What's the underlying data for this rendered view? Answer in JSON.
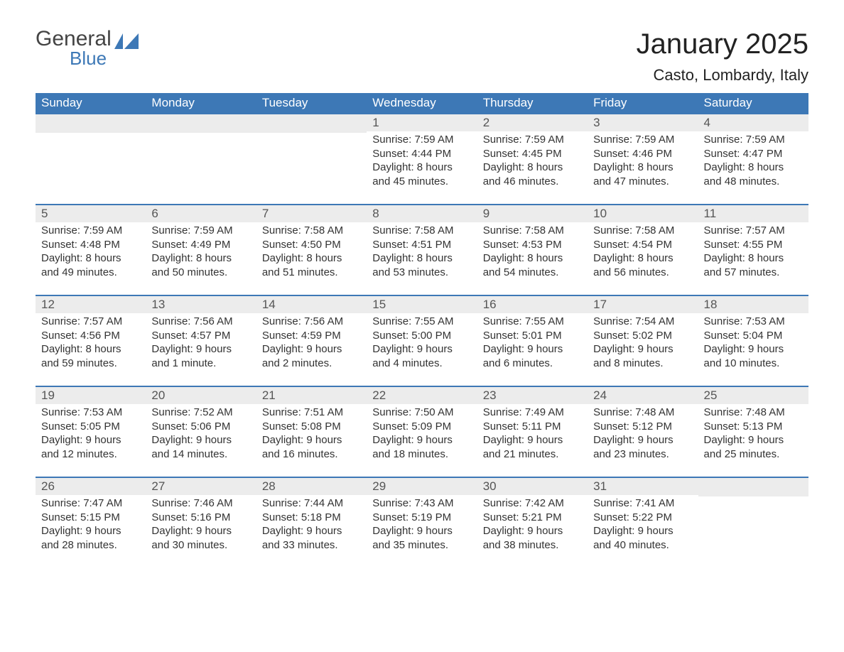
{
  "brand": {
    "word1": "General",
    "word2": "Blue"
  },
  "title": "January 2025",
  "location": "Casto, Lombardy, Italy",
  "colors": {
    "header_bg": "#3d78b6",
    "header_text": "#ffffff",
    "daynum_bg": "#ececec",
    "border": "#3d78b6",
    "body_text": "#333333",
    "logo_gray": "#444444",
    "logo_blue": "#3d78b6"
  },
  "day_headers": [
    "Sunday",
    "Monday",
    "Tuesday",
    "Wednesday",
    "Thursday",
    "Friday",
    "Saturday"
  ],
  "weeks": [
    [
      {
        "n": "",
        "sr": "",
        "ss": "",
        "dl1": "",
        "dl2": ""
      },
      {
        "n": "",
        "sr": "",
        "ss": "",
        "dl1": "",
        "dl2": ""
      },
      {
        "n": "",
        "sr": "",
        "ss": "",
        "dl1": "",
        "dl2": ""
      },
      {
        "n": "1",
        "sr": "Sunrise: 7:59 AM",
        "ss": "Sunset: 4:44 PM",
        "dl1": "Daylight: 8 hours",
        "dl2": "and 45 minutes."
      },
      {
        "n": "2",
        "sr": "Sunrise: 7:59 AM",
        "ss": "Sunset: 4:45 PM",
        "dl1": "Daylight: 8 hours",
        "dl2": "and 46 minutes."
      },
      {
        "n": "3",
        "sr": "Sunrise: 7:59 AM",
        "ss": "Sunset: 4:46 PM",
        "dl1": "Daylight: 8 hours",
        "dl2": "and 47 minutes."
      },
      {
        "n": "4",
        "sr": "Sunrise: 7:59 AM",
        "ss": "Sunset: 4:47 PM",
        "dl1": "Daylight: 8 hours",
        "dl2": "and 48 minutes."
      }
    ],
    [
      {
        "n": "5",
        "sr": "Sunrise: 7:59 AM",
        "ss": "Sunset: 4:48 PM",
        "dl1": "Daylight: 8 hours",
        "dl2": "and 49 minutes."
      },
      {
        "n": "6",
        "sr": "Sunrise: 7:59 AM",
        "ss": "Sunset: 4:49 PM",
        "dl1": "Daylight: 8 hours",
        "dl2": "and 50 minutes."
      },
      {
        "n": "7",
        "sr": "Sunrise: 7:58 AM",
        "ss": "Sunset: 4:50 PM",
        "dl1": "Daylight: 8 hours",
        "dl2": "and 51 minutes."
      },
      {
        "n": "8",
        "sr": "Sunrise: 7:58 AM",
        "ss": "Sunset: 4:51 PM",
        "dl1": "Daylight: 8 hours",
        "dl2": "and 53 minutes."
      },
      {
        "n": "9",
        "sr": "Sunrise: 7:58 AM",
        "ss": "Sunset: 4:53 PM",
        "dl1": "Daylight: 8 hours",
        "dl2": "and 54 minutes."
      },
      {
        "n": "10",
        "sr": "Sunrise: 7:58 AM",
        "ss": "Sunset: 4:54 PM",
        "dl1": "Daylight: 8 hours",
        "dl2": "and 56 minutes."
      },
      {
        "n": "11",
        "sr": "Sunrise: 7:57 AM",
        "ss": "Sunset: 4:55 PM",
        "dl1": "Daylight: 8 hours",
        "dl2": "and 57 minutes."
      }
    ],
    [
      {
        "n": "12",
        "sr": "Sunrise: 7:57 AM",
        "ss": "Sunset: 4:56 PM",
        "dl1": "Daylight: 8 hours",
        "dl2": "and 59 minutes."
      },
      {
        "n": "13",
        "sr": "Sunrise: 7:56 AM",
        "ss": "Sunset: 4:57 PM",
        "dl1": "Daylight: 9 hours",
        "dl2": "and 1 minute."
      },
      {
        "n": "14",
        "sr": "Sunrise: 7:56 AM",
        "ss": "Sunset: 4:59 PM",
        "dl1": "Daylight: 9 hours",
        "dl2": "and 2 minutes."
      },
      {
        "n": "15",
        "sr": "Sunrise: 7:55 AM",
        "ss": "Sunset: 5:00 PM",
        "dl1": "Daylight: 9 hours",
        "dl2": "and 4 minutes."
      },
      {
        "n": "16",
        "sr": "Sunrise: 7:55 AM",
        "ss": "Sunset: 5:01 PM",
        "dl1": "Daylight: 9 hours",
        "dl2": "and 6 minutes."
      },
      {
        "n": "17",
        "sr": "Sunrise: 7:54 AM",
        "ss": "Sunset: 5:02 PM",
        "dl1": "Daylight: 9 hours",
        "dl2": "and 8 minutes."
      },
      {
        "n": "18",
        "sr": "Sunrise: 7:53 AM",
        "ss": "Sunset: 5:04 PM",
        "dl1": "Daylight: 9 hours",
        "dl2": "and 10 minutes."
      }
    ],
    [
      {
        "n": "19",
        "sr": "Sunrise: 7:53 AM",
        "ss": "Sunset: 5:05 PM",
        "dl1": "Daylight: 9 hours",
        "dl2": "and 12 minutes."
      },
      {
        "n": "20",
        "sr": "Sunrise: 7:52 AM",
        "ss": "Sunset: 5:06 PM",
        "dl1": "Daylight: 9 hours",
        "dl2": "and 14 minutes."
      },
      {
        "n": "21",
        "sr": "Sunrise: 7:51 AM",
        "ss": "Sunset: 5:08 PM",
        "dl1": "Daylight: 9 hours",
        "dl2": "and 16 minutes."
      },
      {
        "n": "22",
        "sr": "Sunrise: 7:50 AM",
        "ss": "Sunset: 5:09 PM",
        "dl1": "Daylight: 9 hours",
        "dl2": "and 18 minutes."
      },
      {
        "n": "23",
        "sr": "Sunrise: 7:49 AM",
        "ss": "Sunset: 5:11 PM",
        "dl1": "Daylight: 9 hours",
        "dl2": "and 21 minutes."
      },
      {
        "n": "24",
        "sr": "Sunrise: 7:48 AM",
        "ss": "Sunset: 5:12 PM",
        "dl1": "Daylight: 9 hours",
        "dl2": "and 23 minutes."
      },
      {
        "n": "25",
        "sr": "Sunrise: 7:48 AM",
        "ss": "Sunset: 5:13 PM",
        "dl1": "Daylight: 9 hours",
        "dl2": "and 25 minutes."
      }
    ],
    [
      {
        "n": "26",
        "sr": "Sunrise: 7:47 AM",
        "ss": "Sunset: 5:15 PM",
        "dl1": "Daylight: 9 hours",
        "dl2": "and 28 minutes."
      },
      {
        "n": "27",
        "sr": "Sunrise: 7:46 AM",
        "ss": "Sunset: 5:16 PM",
        "dl1": "Daylight: 9 hours",
        "dl2": "and 30 minutes."
      },
      {
        "n": "28",
        "sr": "Sunrise: 7:44 AM",
        "ss": "Sunset: 5:18 PM",
        "dl1": "Daylight: 9 hours",
        "dl2": "and 33 minutes."
      },
      {
        "n": "29",
        "sr": "Sunrise: 7:43 AM",
        "ss": "Sunset: 5:19 PM",
        "dl1": "Daylight: 9 hours",
        "dl2": "and 35 minutes."
      },
      {
        "n": "30",
        "sr": "Sunrise: 7:42 AM",
        "ss": "Sunset: 5:21 PM",
        "dl1": "Daylight: 9 hours",
        "dl2": "and 38 minutes."
      },
      {
        "n": "31",
        "sr": "Sunrise: 7:41 AM",
        "ss": "Sunset: 5:22 PM",
        "dl1": "Daylight: 9 hours",
        "dl2": "and 40 minutes."
      },
      {
        "n": "",
        "sr": "",
        "ss": "",
        "dl1": "",
        "dl2": ""
      }
    ]
  ]
}
